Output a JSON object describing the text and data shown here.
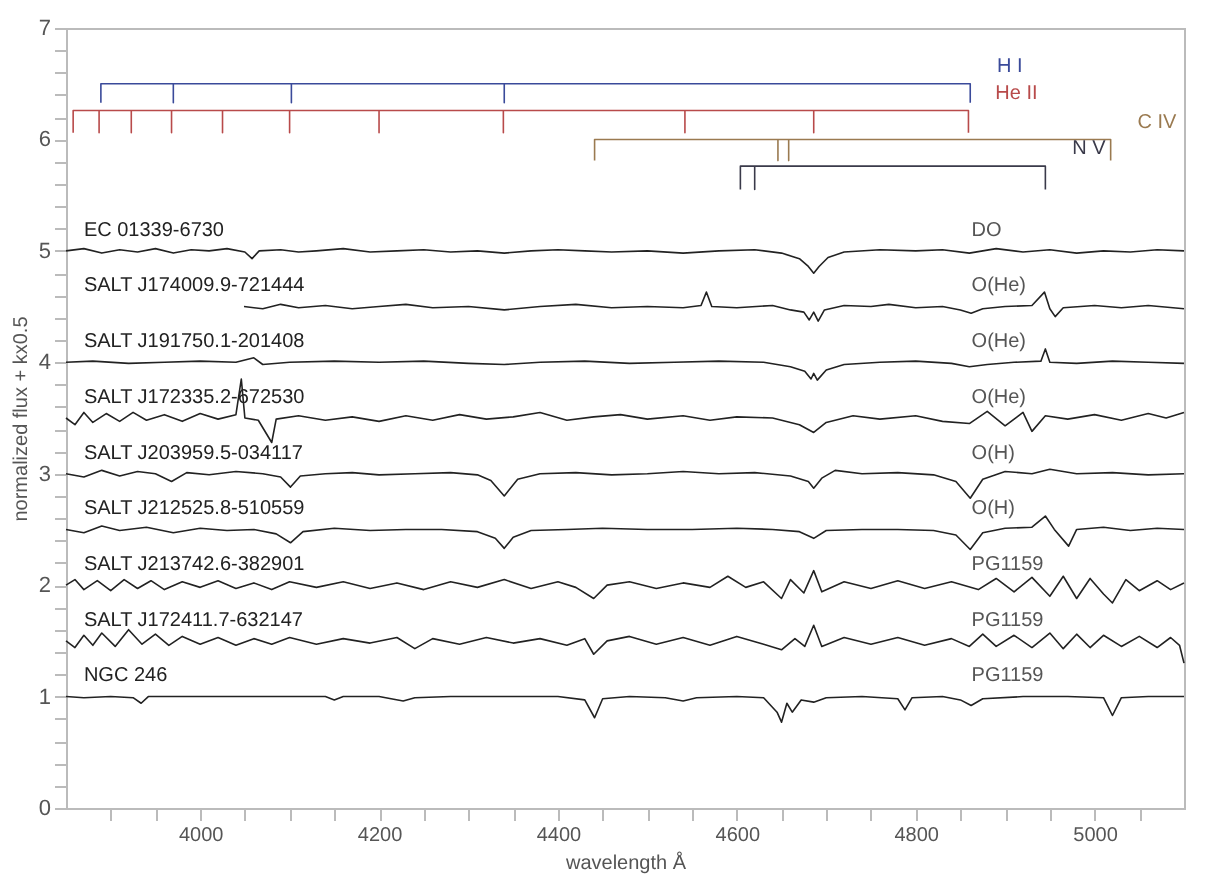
{
  "chart_data": {
    "type": "line",
    "xlabel": "wavelength Å",
    "ylabel": "normalized flux + kx0.5",
    "xlim": [
      3850,
      5100
    ],
    "ylim": [
      0,
      7
    ],
    "marker": "none",
    "line_style": "solid",
    "xticks": [
      {
        "value": 3900,
        "label": null
      },
      {
        "value": 3950,
        "label": null
      },
      4000,
      {
        "value": 4050,
        "label": null
      },
      {
        "value": 4100,
        "label": null
      },
      {
        "value": 4150,
        "label": null
      },
      4200,
      {
        "value": 4250,
        "label": null
      },
      {
        "value": 4300,
        "label": null
      },
      {
        "value": 4350,
        "label": null
      },
      4400,
      {
        "value": 4450,
        "label": null
      },
      {
        "value": 4500,
        "label": null
      },
      {
        "value": 4550,
        "label": null
      },
      4600,
      {
        "value": 4650,
        "label": null
      },
      {
        "value": 4700,
        "label": null
      },
      {
        "value": 4750,
        "label": null
      },
      4800,
      {
        "value": 4850,
        "label": null
      },
      {
        "value": 4900,
        "label": null
      },
      {
        "value": 4950,
        "label": null
      },
      5000,
      {
        "value": 5050,
        "label": null
      }
    ],
    "yticks": [
      0,
      {
        "value": 0.2,
        "label": null
      },
      {
        "value": 0.4,
        "label": null
      },
      {
        "value": 0.6,
        "label": null
      },
      {
        "value": 0.8,
        "label": null
      },
      1,
      {
        "value": 1.2,
        "label": null
      },
      {
        "value": 1.4,
        "label": null
      },
      {
        "value": 1.6,
        "label": null
      },
      {
        "value": 1.8,
        "label": null
      },
      2,
      {
        "value": 2.2,
        "label": null
      },
      {
        "value": 2.4,
        "label": null
      },
      {
        "value": 2.6,
        "label": null
      },
      {
        "value": 2.8,
        "label": null
      },
      3,
      {
        "value": 3.2,
        "label": null
      },
      {
        "value": 3.4,
        "label": null
      },
      {
        "value": 3.6,
        "label": null
      },
      {
        "value": 3.8,
        "label": null
      },
      4,
      {
        "value": 4.2,
        "label": null
      },
      {
        "value": 4.4,
        "label": null
      },
      {
        "value": 4.6,
        "label": null
      },
      {
        "value": 4.8,
        "label": null
      },
      5,
      {
        "value": 5.2,
        "label": null
      },
      {
        "value": 5.4,
        "label": null
      },
      {
        "value": 5.6,
        "label": null
      },
      {
        "value": 5.8,
        "label": null
      },
      6,
      {
        "value": 6.2,
        "label": null
      },
      {
        "value": 6.4,
        "label": null
      },
      {
        "value": 6.6,
        "label": null
      },
      {
        "value": 6.8,
        "label": null
      },
      7
    ],
    "series": [
      {
        "name": "EC 01339-6730",
        "color": "#222222",
        "x": [
          3850,
          3870,
          3890,
          3910,
          3930,
          3950,
          3970,
          3990,
          4010,
          4030,
          4050,
          4058,
          4066,
          4090,
          4110,
          4130,
          4160,
          4190,
          4220,
          4250,
          4280,
          4310,
          4340,
          4370,
          4400,
          4430,
          4460,
          4500,
          4540,
          4580,
          4620,
          4650,
          4670,
          4680,
          4686,
          4692,
          4702,
          4720,
          4760,
          4800,
          4830,
          4860,
          4890,
          4920,
          4950,
          4980,
          5010,
          5040,
          5070,
          5100
        ],
        "values": [
          5.0,
          5.02,
          4.98,
          5.01,
          4.99,
          5.02,
          4.98,
          5.01,
          5.0,
          5.02,
          4.99,
          4.93,
          5.0,
          5.01,
          4.99,
          5.0,
          5.02,
          4.99,
          5.0,
          5.01,
          4.99,
          5.0,
          4.98,
          5.0,
          5.01,
          5.0,
          4.99,
          5.0,
          4.98,
          5.0,
          5.01,
          4.98,
          4.93,
          4.86,
          4.8,
          4.86,
          4.94,
          4.99,
          5.01,
          5.0,
          5.01,
          4.98,
          5.02,
          4.99,
          5.01,
          4.98,
          5.0,
          4.99,
          5.01,
          5.0
        ]
      },
      {
        "name": "SALT J174009.9-721444",
        "color": "#222222",
        "x": [
          4049,
          4070,
          4090,
          4110,
          4140,
          4170,
          4200,
          4230,
          4260,
          4300,
          4340,
          4380,
          4420,
          4460,
          4500,
          4540,
          4560,
          4566,
          4572,
          4600,
          4640,
          4660,
          4675,
          4681,
          4686,
          4691,
          4698,
          4720,
          4750,
          4770,
          4800,
          4830,
          4850,
          4862,
          4875,
          4900,
          4930,
          4944,
          4950,
          4956,
          4965,
          5000,
          5030,
          5060,
          5100
        ],
        "values": [
          4.5,
          4.48,
          4.52,
          4.49,
          4.51,
          4.48,
          4.5,
          4.52,
          4.49,
          4.5,
          4.47,
          4.5,
          4.52,
          4.49,
          4.5,
          4.49,
          4.51,
          4.63,
          4.5,
          4.49,
          4.51,
          4.47,
          4.45,
          4.38,
          4.45,
          4.37,
          4.47,
          4.51,
          4.5,
          4.52,
          4.49,
          4.5,
          4.47,
          4.44,
          4.48,
          4.5,
          4.51,
          4.63,
          4.48,
          4.41,
          4.49,
          4.51,
          4.49,
          4.51,
          4.48
        ]
      },
      {
        "name": "SALT J191750.1-201408",
        "color": "#222222",
        "x": [
          3850,
          3880,
          3920,
          3960,
          4000,
          4040,
          4060,
          4070,
          4100,
          4150,
          4200,
          4250,
          4300,
          4340,
          4380,
          4430,
          4480,
          4530,
          4580,
          4630,
          4660,
          4676,
          4683,
          4686,
          4690,
          4700,
          4720,
          4760,
          4800,
          4840,
          4860,
          4880,
          4910,
          4940,
          4945,
          4950,
          4980,
          5020,
          5060,
          5100
        ],
        "values": [
          4.0,
          4.01,
          3.99,
          4.0,
          4.01,
          4.0,
          4.04,
          3.98,
          4.0,
          4.01,
          4.0,
          4.01,
          3.99,
          3.98,
          4.0,
          4.01,
          3.99,
          4.0,
          4.01,
          4.0,
          3.96,
          3.92,
          3.85,
          3.9,
          3.84,
          3.93,
          3.98,
          4.0,
          4.01,
          3.99,
          3.96,
          3.98,
          4.0,
          4.01,
          4.12,
          4.0,
          3.99,
          4.01,
          4.0,
          3.99
        ]
      },
      {
        "name": "SALT J172335.2-672530",
        "color": "#222222",
        "x": [
          3850,
          3860,
          3870,
          3880,
          3895,
          3910,
          3925,
          3940,
          3960,
          3980,
          4000,
          4020,
          4040,
          4046,
          4050,
          4065,
          4080,
          4085,
          4110,
          4140,
          4170,
          4200,
          4230,
          4260,
          4290,
          4320,
          4350,
          4380,
          4410,
          4440,
          4470,
          4500,
          4540,
          4570,
          4600,
          4640,
          4670,
          4686,
          4700,
          4730,
          4760,
          4800,
          4830,
          4860,
          4880,
          4900,
          4920,
          4930,
          4945,
          4970,
          5000,
          5030,
          5060,
          5080,
          5100
        ],
        "values": [
          3.5,
          3.44,
          3.55,
          3.46,
          3.54,
          3.47,
          3.55,
          3.48,
          3.53,
          3.47,
          3.54,
          3.49,
          3.53,
          3.85,
          3.5,
          3.48,
          3.28,
          3.49,
          3.52,
          3.48,
          3.51,
          3.47,
          3.52,
          3.48,
          3.53,
          3.49,
          3.51,
          3.55,
          3.48,
          3.51,
          3.53,
          3.49,
          3.52,
          3.48,
          3.51,
          3.5,
          3.44,
          3.37,
          3.46,
          3.52,
          3.49,
          3.52,
          3.47,
          3.45,
          3.56,
          3.43,
          3.55,
          3.38,
          3.52,
          3.49,
          3.53,
          3.48,
          3.54,
          3.5,
          3.55
        ]
      },
      {
        "name": "SALT J203959.5-034117",
        "color": "#222222",
        "x": [
          3850,
          3870,
          3890,
          3910,
          3930,
          3950,
          3968,
          3985,
          4010,
          4040,
          4070,
          4090,
          4101,
          4112,
          4140,
          4170,
          4200,
          4240,
          4280,
          4310,
          4325,
          4340,
          4355,
          4380,
          4420,
          4460,
          4500,
          4540,
          4580,
          4620,
          4660,
          4680,
          4686,
          4695,
          4710,
          4740,
          4780,
          4820,
          4845,
          4861,
          4875,
          4900,
          4930,
          4950,
          4980,
          5020,
          5060,
          5100
        ],
        "values": [
          3.0,
          2.97,
          3.03,
          2.98,
          3.02,
          3.0,
          2.93,
          3.01,
          2.99,
          3.02,
          3.0,
          2.97,
          2.88,
          2.98,
          3.0,
          3.01,
          2.99,
          3.0,
          3.01,
          2.99,
          2.94,
          2.8,
          2.95,
          3.0,
          3.01,
          2.99,
          3.0,
          3.02,
          3.0,
          3.01,
          2.98,
          2.93,
          2.87,
          2.96,
          3.03,
          3.0,
          3.01,
          2.99,
          2.93,
          2.78,
          2.95,
          3.02,
          3.0,
          3.04,
          3.0,
          3.01,
          2.99,
          3.0
        ]
      },
      {
        "name": "SALT J212525.8-510559",
        "color": "#222222",
        "x": [
          3850,
          3870,
          3890,
          3910,
          3940,
          3970,
          4000,
          4030,
          4060,
          4085,
          4101,
          4115,
          4150,
          4190,
          4230,
          4270,
          4310,
          4330,
          4340,
          4350,
          4370,
          4410,
          4450,
          4500,
          4550,
          4600,
          4640,
          4670,
          4686,
          4700,
          4740,
          4780,
          4820,
          4845,
          4861,
          4875,
          4900,
          4930,
          4945,
          4955,
          4971,
          4980,
          5010,
          5040,
          5070,
          5100
        ],
        "values": [
          2.5,
          2.47,
          2.53,
          2.49,
          2.52,
          2.47,
          2.51,
          2.49,
          2.5,
          2.46,
          2.38,
          2.48,
          2.51,
          2.49,
          2.5,
          2.5,
          2.48,
          2.42,
          2.33,
          2.43,
          2.49,
          2.5,
          2.51,
          2.5,
          2.5,
          2.51,
          2.5,
          2.48,
          2.42,
          2.49,
          2.5,
          2.5,
          2.49,
          2.45,
          2.32,
          2.47,
          2.51,
          2.52,
          2.62,
          2.5,
          2.35,
          2.5,
          2.52,
          2.49,
          2.51,
          2.5
        ]
      },
      {
        "name": "SALT J213742.6-382901",
        "color": "#222222",
        "x": [
          3850,
          3860,
          3870,
          3885,
          3900,
          3915,
          3930,
          3945,
          3960,
          3980,
          4000,
          4020,
          4040,
          4060,
          4080,
          4100,
          4130,
          4160,
          4190,
          4220,
          4250,
          4280,
          4310,
          4340,
          4370,
          4400,
          4420,
          4440,
          4455,
          4480,
          4510,
          4540,
          4570,
          4590,
          4610,
          4630,
          4650,
          4660,
          4675,
          4686,
          4695,
          4720,
          4750,
          4780,
          4810,
          4840,
          4870,
          4890,
          4910,
          4930,
          4950,
          4965,
          4980,
          4995,
          5010,
          5020,
          5035,
          5050,
          5070,
          5085,
          5100
        ],
        "values": [
          2.0,
          2.05,
          1.96,
          2.04,
          1.95,
          2.05,
          1.97,
          2.04,
          1.96,
          2.03,
          1.98,
          2.04,
          1.97,
          2.02,
          1.96,
          2.03,
          1.98,
          2.03,
          1.97,
          2.02,
          1.96,
          2.03,
          1.98,
          2.05,
          1.97,
          2.03,
          1.98,
          1.88,
          2.0,
          2.03,
          1.97,
          2.02,
          1.98,
          2.08,
          1.98,
          2.03,
          1.88,
          2.05,
          1.93,
          2.13,
          1.94,
          2.03,
          1.97,
          2.04,
          1.97,
          2.03,
          1.96,
          2.06,
          1.94,
          2.07,
          1.9,
          2.08,
          1.88,
          2.06,
          1.92,
          1.84,
          2.05,
          1.95,
          2.04,
          1.96,
          2.02
        ]
      },
      {
        "name": "SALT J172411.7-632147",
        "color": "#222222",
        "x": [
          3850,
          3860,
          3870,
          3880,
          3890,
          3905,
          3920,
          3935,
          3950,
          3965,
          3980,
          4000,
          4020,
          4040,
          4060,
          4080,
          4100,
          4130,
          4160,
          4190,
          4220,
          4240,
          4260,
          4290,
          4320,
          4350,
          4380,
          4410,
          4430,
          4440,
          4455,
          4480,
          4510,
          4540,
          4570,
          4600,
          4630,
          4650,
          4665,
          4676,
          4686,
          4695,
          4720,
          4750,
          4780,
          4810,
          4840,
          4860,
          4875,
          4890,
          4910,
          4930,
          4950,
          4965,
          4980,
          4995,
          5010,
          5030,
          5050,
          5070,
          5085,
          5095,
          5100
        ],
        "values": [
          1.5,
          1.44,
          1.55,
          1.46,
          1.57,
          1.45,
          1.6,
          1.47,
          1.56,
          1.46,
          1.54,
          1.47,
          1.53,
          1.46,
          1.52,
          1.47,
          1.53,
          1.47,
          1.52,
          1.48,
          1.53,
          1.43,
          1.52,
          1.47,
          1.53,
          1.48,
          1.52,
          1.46,
          1.52,
          1.38,
          1.5,
          1.54,
          1.47,
          1.53,
          1.46,
          1.54,
          1.47,
          1.42,
          1.52,
          1.45,
          1.64,
          1.45,
          1.53,
          1.47,
          1.53,
          1.46,
          1.52,
          1.45,
          1.56,
          1.45,
          1.55,
          1.44,
          1.57,
          1.43,
          1.56,
          1.44,
          1.55,
          1.45,
          1.54,
          1.44,
          1.53,
          1.46,
          1.3
        ]
      },
      {
        "name": "NGC 246",
        "color": "#222222",
        "x": [
          3850,
          3870,
          3900,
          3925,
          3934,
          3942,
          3970,
          4000,
          4050,
          4100,
          4140,
          4150,
          4160,
          4200,
          4227,
          4240,
          4280,
          4330,
          4400,
          4430,
          4441,
          4450,
          4480,
          4520,
          4540,
          4555,
          4600,
          4630,
          4645,
          4650,
          4656,
          4662,
          4672,
          4686,
          4700,
          4740,
          4780,
          4788,
          4796,
          4830,
          4850,
          4862,
          4875,
          4920,
          4970,
          5010,
          5020,
          5030,
          5060,
          5100
        ],
        "values": [
          1.0,
          0.99,
          1.0,
          0.99,
          0.94,
          1.0,
          1.0,
          1.0,
          1.0,
          1.0,
          1.0,
          0.97,
          1.0,
          1.0,
          0.96,
          0.99,
          1.0,
          1.0,
          1.0,
          0.97,
          0.81,
          0.98,
          1.0,
          0.99,
          0.96,
          0.99,
          1.0,
          0.99,
          0.86,
          0.77,
          0.94,
          0.86,
          0.97,
          0.95,
          0.99,
          1.0,
          0.98,
          0.88,
          0.99,
          1.0,
          0.97,
          0.92,
          0.98,
          1.0,
          1.0,
          0.99,
          0.83,
          0.99,
          1.0,
          1.0
        ]
      },
      {
        "name": "H I",
        "color": "#3a4a9a",
        "x": [
          3889,
          3889,
          3970,
          3970,
          3970,
          4102,
          4102,
          4102,
          4340,
          4340,
          4340,
          4861,
          4861
        ],
        "values": [
          6.33,
          6.5,
          6.5,
          6.33,
          6.5,
          6.5,
          6.33,
          6.5,
          6.5,
          6.33,
          6.5,
          6.5,
          6.33
        ]
      },
      {
        "name": "He II",
        "color": "#b84a4a",
        "x": [
          3858,
          3858,
          3887,
          3887,
          3887,
          3923,
          3923,
          3923,
          3968,
          3968,
          3968,
          4025,
          4025,
          4025,
          4100,
          4100,
          4100,
          4200,
          4200,
          4200,
          4339,
          4339,
          4339,
          4542,
          4542,
          4542,
          4686,
          4686,
          4686,
          4859,
          4859
        ],
        "values": [
          6.06,
          6.26,
          6.26,
          6.06,
          6.26,
          6.26,
          6.06,
          6.26,
          6.26,
          6.06,
          6.26,
          6.26,
          6.06,
          6.26,
          6.26,
          6.06,
          6.26,
          6.26,
          6.06,
          6.26,
          6.26,
          6.06,
          6.26,
          6.26,
          6.06,
          6.26,
          6.26,
          6.06,
          6.26,
          6.26,
          6.06
        ]
      },
      {
        "name": "C IV",
        "color": "#9a7a50",
        "x": [
          4441,
          4441,
          4646,
          4646,
          4646,
          4658,
          4658,
          4658,
          5018,
          5018
        ],
        "values": [
          5.81,
          6.0,
          6.0,
          5.81,
          6.0,
          6.0,
          5.81,
          6.0,
          6.0,
          5.81
        ]
      },
      {
        "name": "N V",
        "color": "#3a3a4a",
        "x": [
          4604,
          4604,
          4620,
          4620,
          4620,
          4945,
          4945
        ],
        "values": [
          5.55,
          5.76,
          5.76,
          5.55,
          5.76,
          5.76,
          5.55
        ]
      }
    ],
    "annotations": [
      "DO",
      "O(He)",
      "O(He)",
      "O(He)",
      "O(H)",
      "O(H)",
      "PG1159",
      "PG1159",
      "PG1159"
    ]
  }
}
